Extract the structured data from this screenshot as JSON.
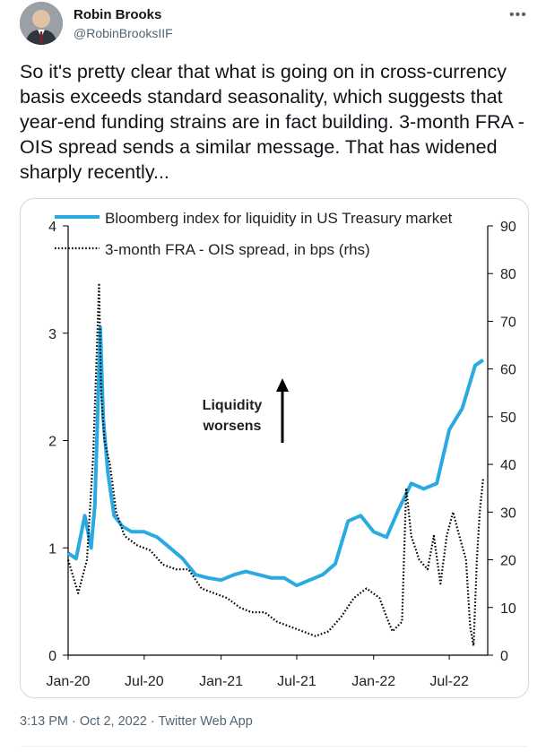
{
  "tweet": {
    "author_name": "Robin Brooks",
    "author_handle": "@RobinBrooksIIF",
    "more_icon": "more-horizontal-icon",
    "text": "So it's pretty clear that what is going on in cross-currency basis exceeds standard seasonality, which suggests that year-end funding strains are in fact building. 3-month FRA - OIS spread sends a similar message. That has widened sharply recently...",
    "timestamp": "3:13 PM · Oct 2, 2022",
    "separator": " · ",
    "source": "Twitter Web App"
  },
  "chart_data": {
    "type": "line",
    "legend": [
      "Bloomberg index for liquidity in US Treasury market",
      "3-month FRA - OIS spread, in bps (rhs)"
    ],
    "annotation": [
      "Liquidity",
      "worsens"
    ],
    "x_ticks": [
      "Jan-20",
      "Jul-20",
      "Jan-21",
      "Jul-21",
      "Jan-22",
      "Jul-22"
    ],
    "left_ticks": [
      "0",
      "1",
      "2",
      "3",
      "4"
    ],
    "right_ticks": [
      "0",
      "10",
      "20",
      "30",
      "40",
      "50",
      "60",
      "70",
      "80",
      "90"
    ],
    "left_range": [
      0,
      4
    ],
    "right_range": [
      0,
      90
    ],
    "x_range": [
      "2020-01-01",
      "2022-10-01"
    ],
    "series": [
      {
        "name": "Bloomberg index for liquidity in US Treasury market",
        "axis": "left",
        "color": "#29abe2",
        "x": [
          "2020-01-01",
          "2020-01-20",
          "2020-02-10",
          "2020-02-25",
          "2020-03-05",
          "2020-03-12",
          "2020-03-18",
          "2020-03-25",
          "2020-04-05",
          "2020-04-20",
          "2020-05-10",
          "2020-06-01",
          "2020-07-01",
          "2020-08-01",
          "2020-09-01",
          "2020-10-01",
          "2020-11-01",
          "2020-12-01",
          "2021-01-01",
          "2021-02-01",
          "2021-03-01",
          "2021-04-01",
          "2021-05-01",
          "2021-06-01",
          "2021-07-01",
          "2021-08-01",
          "2021-09-01",
          "2021-10-01",
          "2021-11-01",
          "2021-12-01",
          "2022-01-01",
          "2022-02-01",
          "2022-03-01",
          "2022-04-01",
          "2022-05-01",
          "2022-06-01",
          "2022-07-01",
          "2022-08-01",
          "2022-09-01",
          "2022-09-20"
        ],
        "y": [
          0.95,
          0.9,
          1.3,
          1.0,
          1.4,
          2.3,
          3.05,
          2.2,
          1.7,
          1.3,
          1.2,
          1.15,
          1.15,
          1.1,
          1.0,
          0.9,
          0.75,
          0.72,
          0.7,
          0.75,
          0.78,
          0.75,
          0.72,
          0.72,
          0.65,
          0.7,
          0.75,
          0.85,
          1.25,
          1.3,
          1.15,
          1.1,
          1.35,
          1.6,
          1.55,
          1.6,
          2.1,
          2.3,
          2.7,
          2.75
        ]
      },
      {
        "name": "3-month FRA - OIS spread, in bps (rhs)",
        "axis": "right",
        "color": "#000000",
        "x": [
          "2020-01-01",
          "2020-01-25",
          "2020-02-15",
          "2020-03-01",
          "2020-03-10",
          "2020-03-15",
          "2020-03-20",
          "2020-03-28",
          "2020-04-10",
          "2020-04-25",
          "2020-05-15",
          "2020-06-15",
          "2020-07-15",
          "2020-08-15",
          "2020-09-15",
          "2020-10-15",
          "2020-11-15",
          "2020-12-15",
          "2021-01-15",
          "2021-02-15",
          "2021-03-15",
          "2021-04-15",
          "2021-05-15",
          "2021-06-15",
          "2021-07-15",
          "2021-08-15",
          "2021-09-15",
          "2021-10-15",
          "2021-11-15",
          "2021-12-15",
          "2022-01-15",
          "2022-02-01",
          "2022-02-15",
          "2022-03-10",
          "2022-03-20",
          "2022-04-01",
          "2022-04-20",
          "2022-05-10",
          "2022-05-25",
          "2022-06-10",
          "2022-06-25",
          "2022-07-10",
          "2022-07-25",
          "2022-08-10",
          "2022-08-20",
          "2022-08-28",
          "2022-09-05",
          "2022-09-12",
          "2022-09-20"
        ],
        "y": [
          20,
          13,
          20,
          42,
          65,
          78,
          55,
          45,
          40,
          30,
          25,
          23,
          22,
          19,
          18,
          18,
          14,
          13,
          12,
          10,
          9,
          9,
          7,
          6,
          5,
          4,
          5,
          8,
          12,
          14,
          12,
          8,
          5,
          7,
          35,
          25,
          20,
          18,
          25,
          15,
          25,
          30,
          25,
          20,
          6,
          2,
          20,
          30,
          37
        ]
      }
    ]
  }
}
